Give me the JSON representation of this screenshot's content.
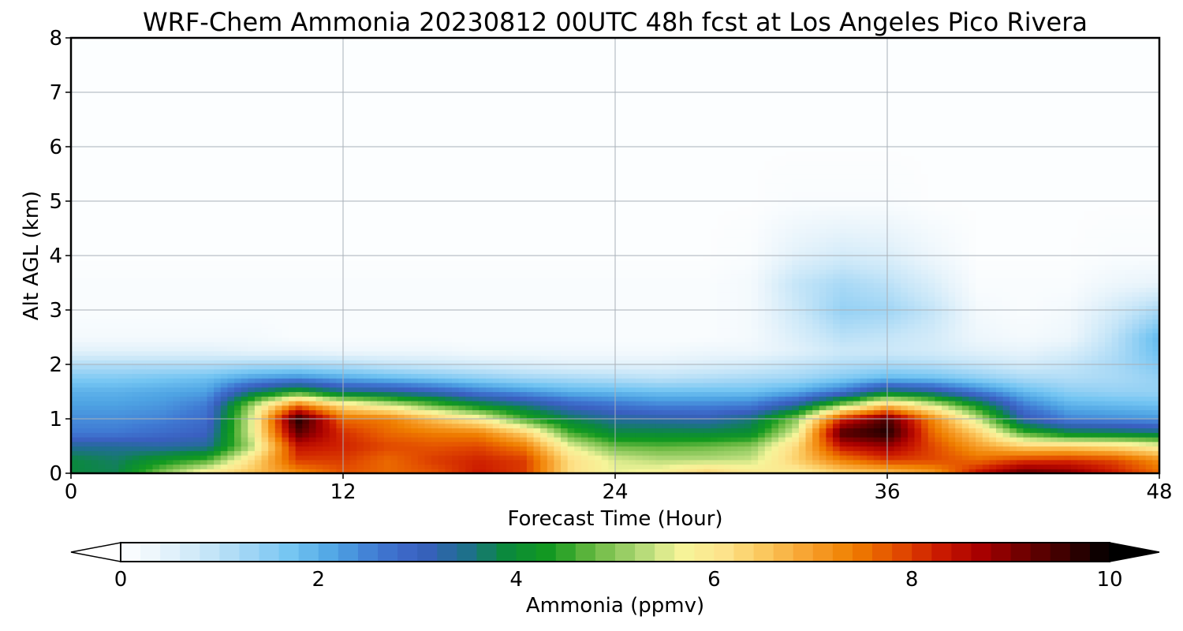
{
  "chart_data": {
    "type": "heatmap",
    "title": "WRF-Chem Ammonia  20230812 00UTC 48h fcst at Los Angeles Pico Rivera",
    "xlabel": "Forecast Time (Hour)",
    "ylabel": "Alt AGL (km)",
    "xlim": [
      0,
      48
    ],
    "ylim": [
      0,
      8
    ],
    "xticks": [
      "0",
      "12",
      "24",
      "36",
      "48"
    ],
    "yticks": [
      "0",
      "1",
      "2",
      "3",
      "4",
      "5",
      "6",
      "7",
      "8"
    ],
    "grid": true,
    "colorbar": {
      "label": "Ammonia  (ppmv)",
      "ticks": [
        "0",
        "2",
        "4",
        "6",
        "8",
        "10"
      ],
      "range": [
        0,
        10
      ],
      "extend": "both",
      "colors": [
        "#ffffff",
        "#e6f3fb",
        "#c7e6f8",
        "#9fd5f5",
        "#72c4f2",
        "#4ea3e3",
        "#3f78d2",
        "#3a5fc0",
        "#1f6f8f",
        "#0a8a3a",
        "#139a1f",
        "#6ab942",
        "#aad672",
        "#f5f59a",
        "#fde48c",
        "#fbc75c",
        "#f7a12e",
        "#f08000",
        "#e45000",
        "#cc1b00",
        "#a80000",
        "#6e0000",
        "#3a0000",
        "#000000"
      ]
    },
    "field": {
      "description_units": "ppmv",
      "x_hours": [
        0,
        2,
        4,
        6,
        8,
        10,
        12,
        14,
        16,
        18,
        20,
        22,
        24,
        26,
        28,
        30,
        32,
        34,
        36,
        38,
        40,
        42,
        44,
        46,
        48
      ],
      "y_km": [
        0,
        0.25,
        0.5,
        0.75,
        1.0,
        1.25,
        1.5,
        1.75,
        2.0,
        2.25,
        2.5,
        3.0,
        3.5,
        4.0,
        5.0,
        6.0,
        8.0
      ],
      "values": [
        [
          3.9,
          3.8,
          5.0,
          6.0,
          6.6,
          7.2,
          7.8,
          7.6,
          7.8,
          8.3,
          8.0,
          6.2,
          5.6,
          5.8,
          6.4,
          6.0,
          5.8,
          6.3,
          6.5,
          7.0,
          8.4,
          9.3,
          9.0,
          8.3,
          7.6
        ],
        [
          3.9,
          3.7,
          4.2,
          4.6,
          6.2,
          8.0,
          8.0,
          7.6,
          8.0,
          8.2,
          8.0,
          6.2,
          5.5,
          5.3,
          5.3,
          5.4,
          6.4,
          7.4,
          8.0,
          7.9,
          7.6,
          8.0,
          8.1,
          7.9,
          7.2
        ],
        [
          3.4,
          3.4,
          3.3,
          3.4,
          5.3,
          8.4,
          8.2,
          7.9,
          7.8,
          7.9,
          7.4,
          5.6,
          4.8,
          4.7,
          4.8,
          5.0,
          6.3,
          8.4,
          8.8,
          7.9,
          7.0,
          6.4,
          6.4,
          6.2,
          5.8
        ],
        [
          2.6,
          2.6,
          2.8,
          3.0,
          5.6,
          9.3,
          8.1,
          7.6,
          7.4,
          7.3,
          6.4,
          4.6,
          3.9,
          3.9,
          3.9,
          4.0,
          5.6,
          9.4,
          9.8,
          7.6,
          6.4,
          4.6,
          3.9,
          3.8,
          3.6
        ],
        [
          2.4,
          2.4,
          2.5,
          2.8,
          5.6,
          9.8,
          7.6,
          7.4,
          6.6,
          5.9,
          4.6,
          3.8,
          3.4,
          3.3,
          3.2,
          3.6,
          5.0,
          8.2,
          9.4,
          7.3,
          5.4,
          3.2,
          2.5,
          2.4,
          2.3
        ],
        [
          2.2,
          2.2,
          2.3,
          2.6,
          5.2,
          7.6,
          6.2,
          5.6,
          4.8,
          4.1,
          3.6,
          3.0,
          2.7,
          2.5,
          2.5,
          2.6,
          3.4,
          5.1,
          6.6,
          5.6,
          4.2,
          2.6,
          2.0,
          1.9,
          1.8
        ],
        [
          2.0,
          2.0,
          2.1,
          2.2,
          3.6,
          4.4,
          3.6,
          3.4,
          3.1,
          2.6,
          2.3,
          2.0,
          1.9,
          1.8,
          1.8,
          1.8,
          2.1,
          2.7,
          3.8,
          3.4,
          2.6,
          1.9,
          1.5,
          1.4,
          1.4
        ],
        [
          1.6,
          1.6,
          1.7,
          1.8,
          2.2,
          2.4,
          2.1,
          1.9,
          1.7,
          1.5,
          1.3,
          1.2,
          1.1,
          1.0,
          1.1,
          1.2,
          1.3,
          1.6,
          1.9,
          1.8,
          1.5,
          1.2,
          1.1,
          1.2,
          1.4
        ],
        [
          1.1,
          1.1,
          1.1,
          1.1,
          1.2,
          1.2,
          1.1,
          0.9,
          0.8,
          0.7,
          0.6,
          0.5,
          0.5,
          0.5,
          0.6,
          0.7,
          0.9,
          1.1,
          1.2,
          1.1,
          0.9,
          0.7,
          0.9,
          1.2,
          1.6
        ],
        [
          0.5,
          0.5,
          0.5,
          0.5,
          0.4,
          0.4,
          0.3,
          0.3,
          0.3,
          0.2,
          0.2,
          0.2,
          0.2,
          0.2,
          0.3,
          0.3,
          0.5,
          0.8,
          0.8,
          0.7,
          0.5,
          0.4,
          0.6,
          1.1,
          1.8
        ],
        [
          0.2,
          0.2,
          0.2,
          0.2,
          0.2,
          0.1,
          0.1,
          0.1,
          0.1,
          0.1,
          0.1,
          0.1,
          0.1,
          0.1,
          0.1,
          0.2,
          0.6,
          1.0,
          0.9,
          0.7,
          0.3,
          0.2,
          0.3,
          1.0,
          1.9
        ],
        [
          0.1,
          0.1,
          0.1,
          0.1,
          0.1,
          0.1,
          0.1,
          0.1,
          0.1,
          0.1,
          0.1,
          0.1,
          0.1,
          0.1,
          0.1,
          0.2,
          0.8,
          1.4,
          1.3,
          0.9,
          0.2,
          0.1,
          0.2,
          0.7,
          1.2
        ],
        [
          0.1,
          0.1,
          0.1,
          0.1,
          0.1,
          0.1,
          0.1,
          0.1,
          0.1,
          0.1,
          0.1,
          0.1,
          0.1,
          0.1,
          0.1,
          0.2,
          0.9,
          1.2,
          1.0,
          0.6,
          0.1,
          0.1,
          0.1,
          0.3,
          0.4
        ],
        [
          0.05,
          0.05,
          0.05,
          0.05,
          0.05,
          0.05,
          0.05,
          0.05,
          0.05,
          0.05,
          0.05,
          0.05,
          0.05,
          0.05,
          0.05,
          0.1,
          0.5,
          0.7,
          0.6,
          0.3,
          0.05,
          0.05,
          0.05,
          0.1,
          0.1
        ],
        [
          0.05,
          0.05,
          0.05,
          0.05,
          0.05,
          0.05,
          0.05,
          0.05,
          0.05,
          0.05,
          0.05,
          0.05,
          0.05,
          0.05,
          0.05,
          0.05,
          0.1,
          0.1,
          0.1,
          0.05,
          0.05,
          0.05,
          0.05,
          0.05,
          0.05
        ],
        [
          0.05,
          0.05,
          0.05,
          0.05,
          0.05,
          0.05,
          0.05,
          0.05,
          0.05,
          0.05,
          0.05,
          0.05,
          0.05,
          0.05,
          0.05,
          0.05,
          0.05,
          0.05,
          0.05,
          0.05,
          0.05,
          0.05,
          0.05,
          0.05,
          0.05
        ],
        [
          0.05,
          0.05,
          0.05,
          0.05,
          0.05,
          0.05,
          0.05,
          0.05,
          0.05,
          0.05,
          0.05,
          0.05,
          0.05,
          0.05,
          0.05,
          0.05,
          0.05,
          0.05,
          0.05,
          0.05,
          0.05,
          0.05,
          0.05,
          0.05,
          0.05
        ]
      ]
    }
  }
}
